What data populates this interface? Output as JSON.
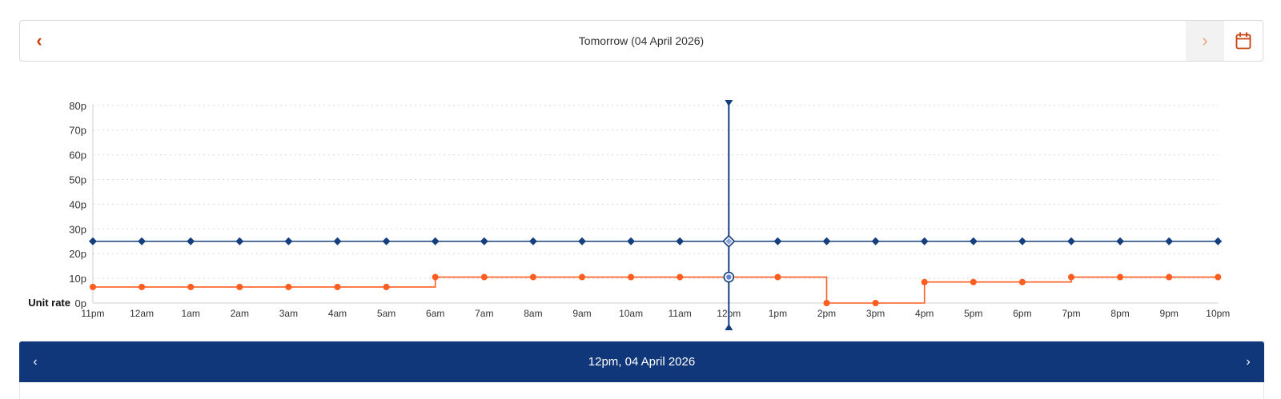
{
  "date_nav": {
    "title": "Tomorrow (04 April 2026)",
    "prev_label": "‹",
    "next_label": "›",
    "calendar_icon": "calendar-icon"
  },
  "chart_data": {
    "type": "line",
    "ylabel": "Unit rate",
    "y_ticks": [
      "0p",
      "10p",
      "20p",
      "30p",
      "40p",
      "50p",
      "60p",
      "70p",
      "80p"
    ],
    "ylim": [
      0,
      80
    ],
    "categories": [
      "11pm",
      "12am",
      "1am",
      "2am",
      "3am",
      "4am",
      "5am",
      "6am",
      "7am",
      "8am",
      "9am",
      "10am",
      "11am",
      "12pm",
      "1pm",
      "2pm",
      "3pm",
      "4pm",
      "5pm",
      "6pm",
      "7pm",
      "8pm",
      "9pm",
      "10pm"
    ],
    "grid": true,
    "selected_category": "12pm",
    "series": [
      {
        "color": "#163f80",
        "marker": "diamond",
        "step": false,
        "values": [
          25,
          25,
          25,
          25,
          25,
          25,
          25,
          25,
          25,
          25,
          25,
          25,
          25,
          25,
          25,
          25,
          25,
          25,
          25,
          25,
          25,
          25,
          25,
          25
        ]
      },
      {
        "color": "#ff5c1f",
        "marker": "circle",
        "step": true,
        "values": [
          6.5,
          6.5,
          6.5,
          6.5,
          6.5,
          6.5,
          6.5,
          10.5,
          10.5,
          10.5,
          10.5,
          10.5,
          10.5,
          10.5,
          10.5,
          0,
          0,
          8.5,
          8.5,
          8.5,
          10.5,
          10.5,
          10.5,
          10.5
        ]
      }
    ]
  },
  "tooltip": {
    "title": "12pm, 04 April 2026",
    "prev_label": "‹",
    "next_label": "›"
  }
}
